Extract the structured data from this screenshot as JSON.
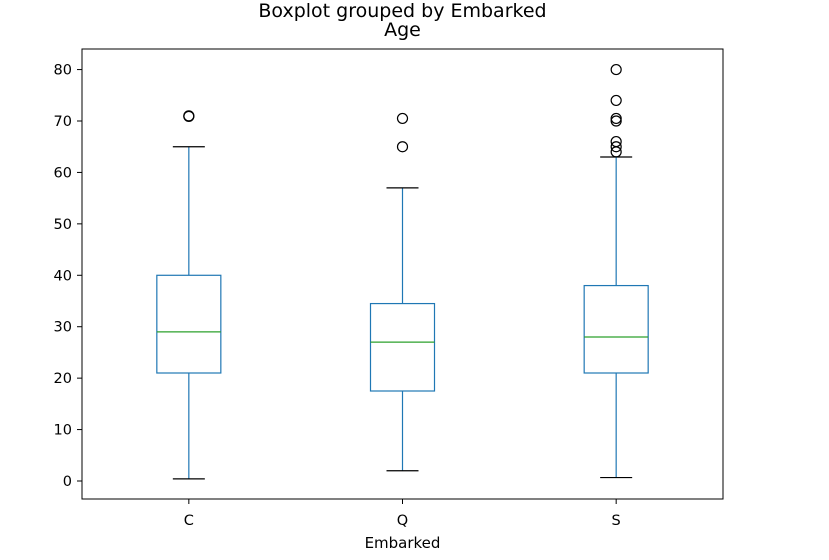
{
  "chart_data": {
    "type": "boxplot",
    "suptitle": "Boxplot grouped by Embarked",
    "title": "Age",
    "xlabel": "Embarked",
    "ylabel": "",
    "categories": [
      "C",
      "Q",
      "S"
    ],
    "ylim": [
      -3.5,
      84
    ],
    "yticks": [
      0,
      10,
      20,
      30,
      40,
      50,
      60,
      70,
      80
    ],
    "grid": false,
    "boxes": [
      {
        "category": "C",
        "whisker_low": 0.42,
        "q1": 21,
        "median": 29,
        "q3": 40,
        "whisker_high": 65,
        "outliers": [
          71,
          70.9
        ]
      },
      {
        "category": "Q",
        "whisker_low": 2,
        "q1": 17.5,
        "median": 27,
        "q3": 34.5,
        "whisker_high": 57,
        "outliers": [
          65,
          70.5
        ]
      },
      {
        "category": "S",
        "whisker_low": 0.67,
        "q1": 21,
        "median": 28,
        "q3": 38,
        "whisker_high": 63,
        "outliers": [
          64,
          65,
          66,
          70,
          70.5,
          74,
          80
        ]
      }
    ],
    "colors": {
      "box": "#1f77b4",
      "median": "#2ca02c",
      "cap": "#000000",
      "outlier": "#000000"
    }
  }
}
